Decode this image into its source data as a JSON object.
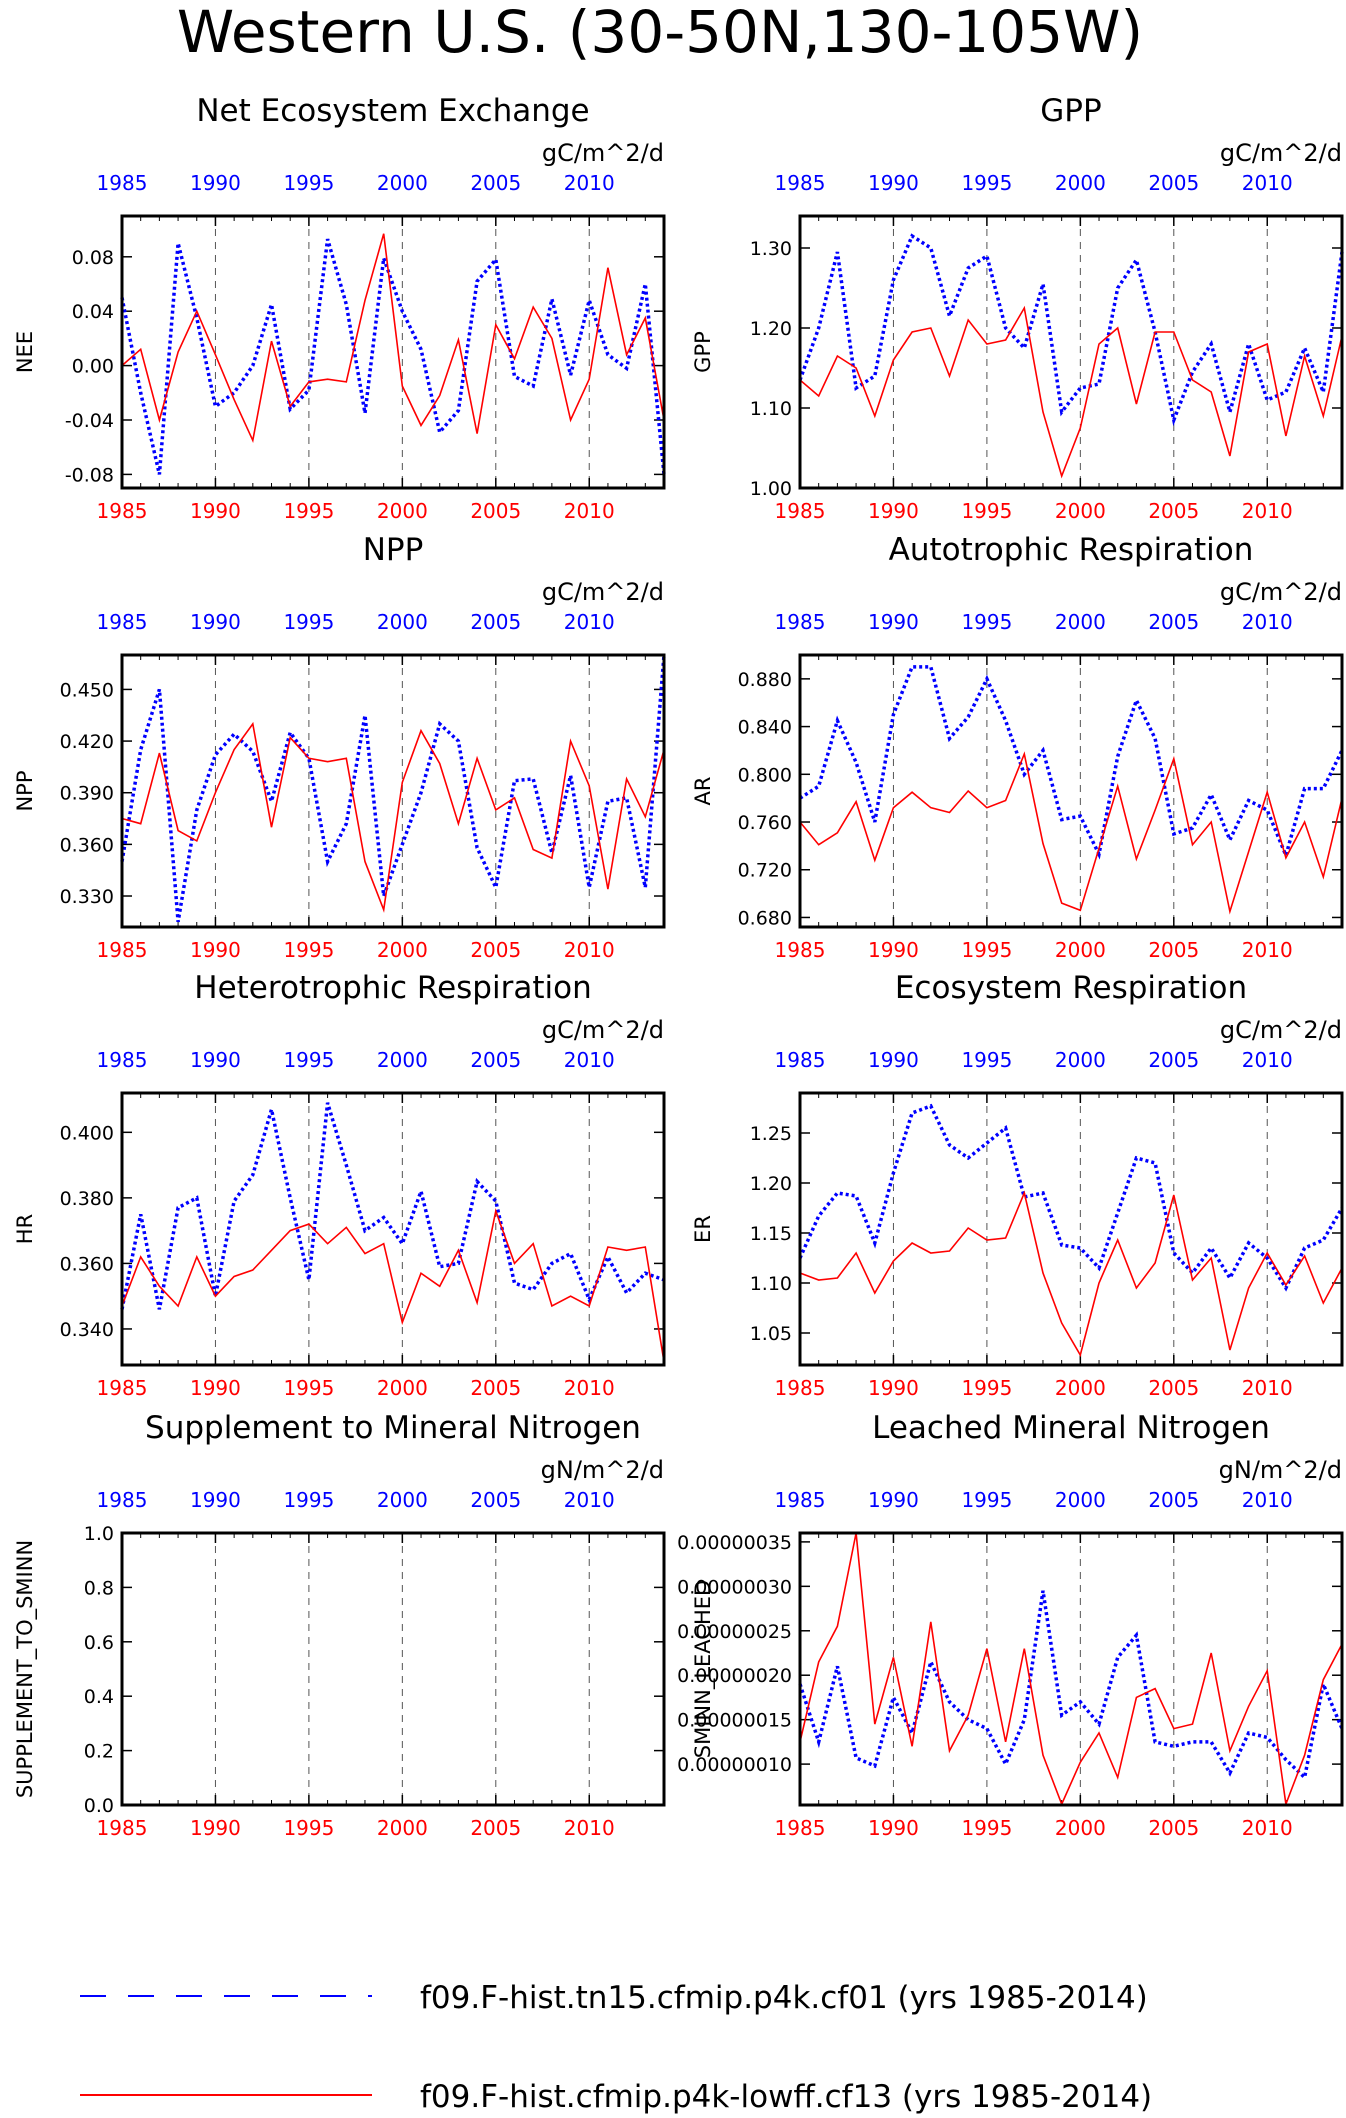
{
  "page_title": "Western U.S. (30-50N,130-105W)",
  "colors": {
    "case1": "#0000ff",
    "case2": "#ff0000",
    "axis": "#000000"
  },
  "legend": [
    {
      "label": "f09.F-hist.tn15.cfmip.p4k.cf01 (yrs 1985-2014)",
      "color": "#0000ff",
      "style": "dashed"
    },
    {
      "label": "f09.F-hist.cfmip.p4k-lowff.cf13 (yrs 1985-2014)",
      "color": "#ff0000",
      "style": "solid"
    }
  ],
  "chart_data": [
    {
      "type": "line",
      "title": "Net Ecosystem Exchange",
      "ylabel": "NEE",
      "units": "gC/m^2/d",
      "xlim": [
        1985,
        2014
      ],
      "ylim": [
        -0.09,
        0.11
      ],
      "xticks": [
        1985,
        1990,
        1995,
        2000,
        2005,
        2010
      ],
      "yticks": [
        -0.08,
        -0.04,
        0.0,
        0.04,
        0.08
      ],
      "ytick_labels": [
        "-0.08",
        "-0.04",
        "0.00",
        "0.04",
        "0.08"
      ],
      "x": [
        1985,
        1986,
        1987,
        1988,
        1989,
        1990,
        1991,
        1992,
        1993,
        1994,
        1995,
        1996,
        1997,
        1998,
        1999,
        2000,
        2001,
        2002,
        2003,
        2004,
        2005,
        2006,
        2007,
        2008,
        2009,
        2010,
        2011,
        2012,
        2013,
        2014
      ],
      "series": [
        {
          "name": "f09.F-hist.tn15.cfmip.p4k.cf01 (yrs 1985-2014)",
          "color": "#0000ff",
          "style": "dashed",
          "values": [
            0.05,
            -0.02,
            -0.08,
            0.09,
            0.035,
            -0.03,
            -0.02,
            0.0,
            0.045,
            -0.032,
            -0.018,
            0.093,
            0.045,
            -0.035,
            0.079,
            0.04,
            0.012,
            -0.049,
            -0.033,
            0.062,
            0.078,
            -0.008,
            -0.015,
            0.049,
            -0.007,
            0.048,
            0.008,
            -0.002,
            0.06,
            -0.08
          ]
        },
        {
          "name": "f09.F-hist.cfmip.p4k-lowff.cf13 (yrs 1985-2014)",
          "color": "#ff0000",
          "style": "solid",
          "values": [
            0.0,
            0.012,
            -0.04,
            0.01,
            0.04,
            0.008,
            -0.025,
            -0.055,
            0.018,
            -0.03,
            -0.012,
            -0.01,
            -0.012,
            0.048,
            0.097,
            -0.015,
            -0.044,
            -0.022,
            0.019,
            -0.05,
            0.03,
            0.005,
            0.043,
            0.02,
            -0.04,
            -0.01,
            0.072,
            0.008,
            0.035,
            -0.04
          ]
        }
      ]
    },
    {
      "type": "line",
      "title": "GPP",
      "ylabel": "GPP",
      "units": "gC/m^2/d",
      "xlim": [
        1985,
        2014
      ],
      "ylim": [
        1.0,
        1.34
      ],
      "xticks": [
        1985,
        1990,
        1995,
        2000,
        2005,
        2010
      ],
      "yticks": [
        1.0,
        1.1,
        1.2,
        1.3
      ],
      "ytick_labels": [
        "1.00",
        "1.10",
        "1.20",
        "1.30"
      ],
      "x": [
        1985,
        1986,
        1987,
        1988,
        1989,
        1990,
        1991,
        1992,
        1993,
        1994,
        1995,
        1996,
        1997,
        1998,
        1999,
        2000,
        2001,
        2002,
        2003,
        2004,
        2005,
        2006,
        2007,
        2008,
        2009,
        2010,
        2011,
        2012,
        2013,
        2014
      ],
      "series": [
        {
          "name": "f09.F-hist.tn15.cfmip.p4k.cf01 (yrs 1985-2014)",
          "color": "#0000ff",
          "style": "dashed",
          "values": [
            1.135,
            1.2,
            1.295,
            1.125,
            1.14,
            1.26,
            1.315,
            1.3,
            1.215,
            1.275,
            1.29,
            1.2,
            1.175,
            1.255,
            1.095,
            1.125,
            1.13,
            1.25,
            1.285,
            1.195,
            1.085,
            1.145,
            1.18,
            1.095,
            1.18,
            1.11,
            1.12,
            1.175,
            1.12,
            1.295
          ]
        },
        {
          "name": "f09.F-hist.cfmip.p4k-lowff.cf13 (yrs 1985-2014)",
          "color": "#ff0000",
          "style": "solid",
          "values": [
            1.135,
            1.115,
            1.165,
            1.15,
            1.09,
            1.16,
            1.195,
            1.2,
            1.14,
            1.21,
            1.18,
            1.185,
            1.225,
            1.095,
            1.015,
            1.075,
            1.18,
            1.2,
            1.105,
            1.195,
            1.195,
            1.135,
            1.12,
            1.04,
            1.17,
            1.18,
            1.065,
            1.165,
            1.09,
            1.19
          ]
        }
      ]
    },
    {
      "type": "line",
      "title": "NPP",
      "ylabel": "NPP",
      "units": "gC/m^2/d",
      "xlim": [
        1985,
        2014
      ],
      "ylim": [
        0.312,
        0.47
      ],
      "xticks": [
        1985,
        1990,
        1995,
        2000,
        2005,
        2010
      ],
      "yticks": [
        0.33,
        0.36,
        0.39,
        0.42,
        0.45
      ],
      "ytick_labels": [
        "0.330",
        "0.360",
        "0.390",
        "0.420",
        "0.450"
      ],
      "x": [
        1985,
        1986,
        1987,
        1988,
        1989,
        1990,
        1991,
        1992,
        1993,
        1994,
        1995,
        1996,
        1997,
        1998,
        1999,
        2000,
        2001,
        2002,
        2003,
        2004,
        2005,
        2006,
        2007,
        2008,
        2009,
        2010,
        2011,
        2012,
        2013,
        2014
      ],
      "series": [
        {
          "name": "f09.F-hist.tn15.cfmip.p4k.cf01 (yrs 1985-2014)",
          "color": "#0000ff",
          "style": "dashed",
          "values": [
            0.35,
            0.415,
            0.45,
            0.315,
            0.38,
            0.412,
            0.424,
            0.414,
            0.385,
            0.425,
            0.41,
            0.35,
            0.372,
            0.435,
            0.33,
            0.36,
            0.39,
            0.43,
            0.42,
            0.358,
            0.335,
            0.397,
            0.398,
            0.355,
            0.4,
            0.335,
            0.385,
            0.387,
            0.335,
            0.47
          ]
        },
        {
          "name": "f09.F-hist.cfmip.p4k-lowff.cf13 (yrs 1985-2014)",
          "color": "#ff0000",
          "style": "solid",
          "values": [
            0.375,
            0.372,
            0.413,
            0.368,
            0.362,
            0.39,
            0.415,
            0.43,
            0.37,
            0.422,
            0.41,
            0.408,
            0.41,
            0.35,
            0.322,
            0.396,
            0.426,
            0.407,
            0.372,
            0.41,
            0.38,
            0.387,
            0.357,
            0.352,
            0.42,
            0.394,
            0.334,
            0.398,
            0.376,
            0.415
          ]
        }
      ]
    },
    {
      "type": "line",
      "title": "Autotrophic Respiration",
      "ylabel": "AR",
      "units": "gC/m^2/d",
      "xlim": [
        1985,
        2014
      ],
      "ylim": [
        0.672,
        0.9
      ],
      "xticks": [
        1985,
        1990,
        1995,
        2000,
        2005,
        2010
      ],
      "yticks": [
        0.68,
        0.72,
        0.76,
        0.8,
        0.84,
        0.88
      ],
      "ytick_labels": [
        "0.680",
        "0.720",
        "0.760",
        "0.800",
        "0.840",
        "0.880"
      ],
      "x": [
        1985,
        1986,
        1987,
        1988,
        1989,
        1990,
        1991,
        1992,
        1993,
        1994,
        1995,
        1996,
        1997,
        1998,
        1999,
        2000,
        2001,
        2002,
        2003,
        2004,
        2005,
        2006,
        2007,
        2008,
        2009,
        2010,
        2011,
        2012,
        2013,
        2014
      ],
      "series": [
        {
          "name": "f09.F-hist.tn15.cfmip.p4k.cf01 (yrs 1985-2014)",
          "color": "#0000ff",
          "style": "dashed",
          "values": [
            0.78,
            0.79,
            0.845,
            0.81,
            0.76,
            0.85,
            0.89,
            0.89,
            0.83,
            0.848,
            0.88,
            0.845,
            0.8,
            0.82,
            0.762,
            0.765,
            0.733,
            0.815,
            0.862,
            0.83,
            0.75,
            0.755,
            0.783,
            0.745,
            0.778,
            0.77,
            0.732,
            0.788,
            0.788,
            0.82
          ]
        },
        {
          "name": "f09.F-hist.cfmip.p4k-lowff.cf13 (yrs 1985-2014)",
          "color": "#ff0000",
          "style": "solid",
          "values": [
            0.76,
            0.741,
            0.751,
            0.777,
            0.728,
            0.772,
            0.785,
            0.772,
            0.768,
            0.786,
            0.772,
            0.778,
            0.817,
            0.742,
            0.692,
            0.686,
            0.738,
            0.79,
            0.729,
            0.77,
            0.813,
            0.741,
            0.76,
            0.685,
            0.735,
            0.785,
            0.73,
            0.76,
            0.714,
            0.78
          ]
        }
      ]
    },
    {
      "type": "line",
      "title": "Heterotrophic Respiration",
      "ylabel": "HR",
      "units": "gC/m^2/d",
      "xlim": [
        1985,
        2014
      ],
      "ylim": [
        0.329,
        0.412
      ],
      "xticks": [
        1985,
        1990,
        1995,
        2000,
        2005,
        2010
      ],
      "yticks": [
        0.34,
        0.36,
        0.38,
        0.4
      ],
      "ytick_labels": [
        "0.340",
        "0.360",
        "0.380",
        "0.400"
      ],
      "x": [
        1985,
        1986,
        1987,
        1988,
        1989,
        1990,
        1991,
        1992,
        1993,
        1994,
        1995,
        1996,
        1997,
        1998,
        1999,
        2000,
        2001,
        2002,
        2003,
        2004,
        2005,
        2006,
        2007,
        2008,
        2009,
        2010,
        2011,
        2012,
        2013,
        2014
      ],
      "series": [
        {
          "name": "f09.F-hist.tn15.cfmip.p4k.cf01 (yrs 1985-2014)",
          "color": "#0000ff",
          "style": "dashed",
          "values": [
            0.346,
            0.375,
            0.346,
            0.377,
            0.38,
            0.35,
            0.379,
            0.387,
            0.407,
            0.38,
            0.355,
            0.409,
            0.39,
            0.37,
            0.374,
            0.366,
            0.382,
            0.359,
            0.36,
            0.385,
            0.379,
            0.354,
            0.352,
            0.36,
            0.363,
            0.349,
            0.362,
            0.351,
            0.357,
            0.355
          ]
        },
        {
          "name": "f09.F-hist.cfmip.p4k-lowff.cf13 (yrs 1985-2014)",
          "color": "#ff0000",
          "style": "solid",
          "values": [
            0.347,
            0.362,
            0.353,
            0.347,
            0.362,
            0.35,
            0.356,
            0.358,
            0.364,
            0.37,
            0.372,
            0.366,
            0.371,
            0.363,
            0.366,
            0.342,
            0.357,
            0.353,
            0.364,
            0.348,
            0.376,
            0.36,
            0.366,
            0.347,
            0.35,
            0.347,
            0.365,
            0.364,
            0.365,
            0.33
          ]
        }
      ]
    },
    {
      "type": "line",
      "title": "Ecosystem Respiration",
      "ylabel": "ER",
      "units": "gC/m^2/d",
      "xlim": [
        1985,
        2014
      ],
      "ylim": [
        1.018,
        1.29
      ],
      "xticks": [
        1985,
        1990,
        1995,
        2000,
        2005,
        2010
      ],
      "yticks": [
        1.05,
        1.1,
        1.15,
        1.2,
        1.25
      ],
      "ytick_labels": [
        "1.05",
        "1.10",
        "1.15",
        "1.20",
        "1.25"
      ],
      "x": [
        1985,
        1986,
        1987,
        1988,
        1989,
        1990,
        1991,
        1992,
        1993,
        1994,
        1995,
        1996,
        1997,
        1998,
        1999,
        2000,
        2001,
        2002,
        2003,
        2004,
        2005,
        2006,
        2007,
        2008,
        2009,
        2010,
        2011,
        2012,
        2013,
        2014
      ],
      "series": [
        {
          "name": "f09.F-hist.tn15.cfmip.p4k.cf01 (yrs 1985-2014)",
          "color": "#0000ff",
          "style": "dashed",
          "values": [
            1.125,
            1.167,
            1.19,
            1.187,
            1.14,
            1.21,
            1.27,
            1.277,
            1.238,
            1.225,
            1.24,
            1.255,
            1.186,
            1.19,
            1.138,
            1.135,
            1.115,
            1.17,
            1.225,
            1.22,
            1.13,
            1.11,
            1.135,
            1.105,
            1.14,
            1.125,
            1.095,
            1.135,
            1.143,
            1.175
          ]
        },
        {
          "name": "f09.F-hist.cfmip.p4k-lowff.cf13 (yrs 1985-2014)",
          "color": "#ff0000",
          "style": "solid",
          "values": [
            1.11,
            1.103,
            1.105,
            1.13,
            1.09,
            1.122,
            1.14,
            1.13,
            1.132,
            1.155,
            1.143,
            1.145,
            1.19,
            1.11,
            1.06,
            1.028,
            1.1,
            1.143,
            1.095,
            1.12,
            1.188,
            1.103,
            1.125,
            1.033,
            1.095,
            1.13,
            1.098,
            1.127,
            1.08,
            1.115
          ]
        }
      ]
    },
    {
      "type": "line",
      "title": "Supplement to Mineral Nitrogen",
      "ylabel": "SUPPLEMENT_TO_SMINN",
      "units": "gN/m^2/d",
      "xlim": [
        1985,
        2014
      ],
      "ylim": [
        0.0,
        1.0
      ],
      "xticks": [
        1985,
        1990,
        1995,
        2000,
        2005,
        2010
      ],
      "yticks": [
        0.0,
        0.2,
        0.4,
        0.6,
        0.8,
        1.0
      ],
      "ytick_labels": [
        "0.0",
        "0.2",
        "0.4",
        "0.6",
        "0.8",
        "1.0"
      ],
      "x": [],
      "series": []
    },
    {
      "type": "line",
      "title": "Leached Mineral Nitrogen",
      "ylabel": "SMINN_LEACHED",
      "units": "gN/m^2/d",
      "xlim": [
        1985,
        2014
      ],
      "ylim": [
        5.4e-08,
        3.6e-07
      ],
      "xticks": [
        1985,
        1990,
        1995,
        2000,
        2005,
        2010
      ],
      "yticks": [
        1e-07,
        1.5e-07,
        2e-07,
        2.5e-07,
        3e-07,
        3.5e-07
      ],
      "ytick_labels": [
        "0.00000010",
        "0.00000015",
        "0.00000020",
        "0.00000025",
        "0.00000030",
        "0.00000035"
      ],
      "x": [
        1985,
        1986,
        1987,
        1988,
        1989,
        1990,
        1991,
        1992,
        1993,
        1994,
        1995,
        1996,
        1997,
        1998,
        1999,
        2000,
        2001,
        2002,
        2003,
        2004,
        2005,
        2006,
        2007,
        2008,
        2009,
        2010,
        2011,
        2012,
        2013,
        2014
      ],
      "series": [
        {
          "name": "f09.F-hist.tn15.cfmip.p4k.cf01 (yrs 1985-2014)",
          "color": "#0000ff",
          "style": "dashed",
          "values": [
            1.9e-07,
            1.25e-07,
            2.1e-07,
            1.07e-07,
            9.8e-08,
            1.75e-07,
            1.35e-07,
            2.15e-07,
            1.7e-07,
            1.5e-07,
            1.4e-07,
            1e-07,
            1.5e-07,
            2.95e-07,
            1.55e-07,
            1.7e-07,
            1.45e-07,
            2.2e-07,
            2.45e-07,
            1.25e-07,
            1.2e-07,
            1.25e-07,
            1.25e-07,
            9e-08,
            1.35e-07,
            1.3e-07,
            1.05e-07,
            8.5e-08,
            1.9e-07,
            1.4e-07
          ]
        },
        {
          "name": "f09.F-hist.cfmip.p4k-lowff.cf13 (yrs 1985-2014)",
          "color": "#ff0000",
          "style": "solid",
          "values": [
            1.25e-07,
            2.15e-07,
            2.55e-07,
            3.6e-07,
            1.45e-07,
            2.2e-07,
            1.2e-07,
            2.6e-07,
            1.15e-07,
            1.55e-07,
            2.3e-07,
            1.25e-07,
            2.3e-07,
            1.1e-07,
            5.5e-08,
            1.02e-07,
            1.35e-07,
            8.5e-08,
            1.75e-07,
            1.85e-07,
            1.4e-07,
            1.45e-07,
            2.25e-07,
            1.15e-07,
            1.65e-07,
            2.05e-07,
            5.5e-08,
            1.1e-07,
            1.95e-07,
            2.35e-07
          ]
        }
      ]
    }
  ]
}
